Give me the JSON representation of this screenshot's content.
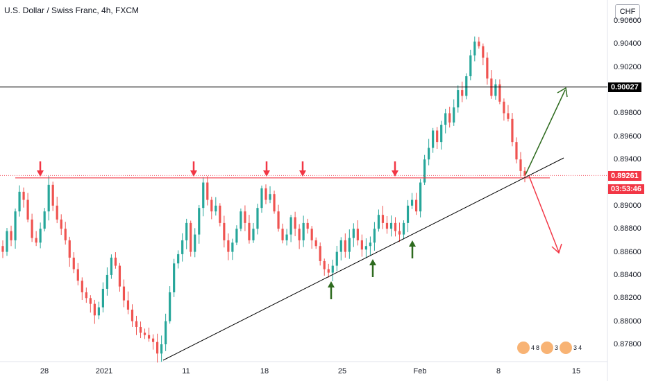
{
  "chart_data": {
    "type": "candlestick",
    "title": "U.S. Dollar / Swiss Franc, 4h, FXCM",
    "currency": "CHF",
    "y_ticks": [
      "0.90600",
      "0.90400",
      "0.90200",
      "0.89800",
      "0.89600",
      "0.89400",
      "0.89000",
      "0.88800",
      "0.88600",
      "0.88400",
      "0.88200",
      "0.88000",
      "0.87800"
    ],
    "x_ticks": [
      "28",
      "2021",
      "11",
      "18",
      "25",
      "Feb",
      "8",
      "15"
    ],
    "ylim": [
      0.8766,
      0.9066
    ],
    "resistance_level": 0.8924,
    "horizontal_line": 0.90027,
    "horizontal_line_label": "0.90027",
    "last_price": 0.89261,
    "last_price_label": "0.89261",
    "countdown": "03:53:46",
    "close_path": [
      0.886,
      0.8878,
      0.887,
      0.8895,
      0.8912,
      0.8905,
      0.8888,
      0.8872,
      0.8868,
      0.888,
      0.8895,
      0.8918,
      0.89,
      0.8888,
      0.888,
      0.887,
      0.8855,
      0.8845,
      0.8835,
      0.8825,
      0.882,
      0.8815,
      0.8805,
      0.8812,
      0.8828,
      0.884,
      0.8855,
      0.8848,
      0.883,
      0.8818,
      0.881,
      0.88,
      0.8795,
      0.879,
      0.8788,
      0.8785,
      0.8782,
      0.8772,
      0.878,
      0.88,
      0.8825,
      0.885,
      0.8858,
      0.887,
      0.8885,
      0.886,
      0.8875,
      0.8898,
      0.892,
      0.8905,
      0.8895,
      0.89,
      0.8885,
      0.887,
      0.886,
      0.8868,
      0.888,
      0.8895,
      0.8885,
      0.887,
      0.888,
      0.8898,
      0.8915,
      0.8905,
      0.891,
      0.8895,
      0.888,
      0.887,
      0.8875,
      0.889,
      0.888,
      0.887,
      0.8885,
      0.888,
      0.887,
      0.8865,
      0.8852,
      0.8845,
      0.8842,
      0.8848,
      0.886,
      0.887,
      0.886,
      0.8872,
      0.888,
      0.887,
      0.8862,
      0.8865,
      0.8868,
      0.888,
      0.8892,
      0.8885,
      0.888,
      0.8885,
      0.8878,
      0.8875,
      0.8885,
      0.89,
      0.8905,
      0.8895,
      0.892,
      0.894,
      0.895,
      0.8965,
      0.8955,
      0.897,
      0.898,
      0.8972,
      0.8985,
      0.9,
      0.8995,
      0.9012,
      0.903,
      0.9042,
      0.9038,
      0.9028,
      0.901,
      0.8995,
      0.9005,
      0.899,
      0.898,
      0.8975,
      0.8955,
      0.894,
      0.893,
      0.8926
    ],
    "arrows": [
      {
        "direction": "down",
        "color": "#f23645",
        "date": "Dec 28"
      },
      {
        "direction": "down",
        "color": "#f23645",
        "date": "Jan 11"
      },
      {
        "direction": "down",
        "color": "#f23645",
        "date": "Jan 18"
      },
      {
        "direction": "down",
        "color": "#f23645",
        "date": "Jan 21"
      },
      {
        "direction": "down",
        "color": "#f23645",
        "date": "Jan 29"
      },
      {
        "direction": "up",
        "color": "#2e6b1f",
        "date": "Jan 24"
      },
      {
        "direction": "up",
        "color": "#2e6b1f",
        "date": "Jan 27"
      },
      {
        "direction": "up",
        "color": "#2e6b1f",
        "date": "Jan 30"
      }
    ],
    "scenario_arrows": [
      {
        "direction": "up",
        "color": "#2e6b1f"
      },
      {
        "direction": "down",
        "color": "#f23645"
      }
    ],
    "colors": {
      "up": "#26a69a",
      "down": "#ef5350",
      "resistance": "#f23645",
      "trendline": "#000000",
      "level": "#000000"
    }
  },
  "watermark": {
    "digits": [
      "4",
      "8",
      "3",
      "3",
      "4"
    ]
  }
}
